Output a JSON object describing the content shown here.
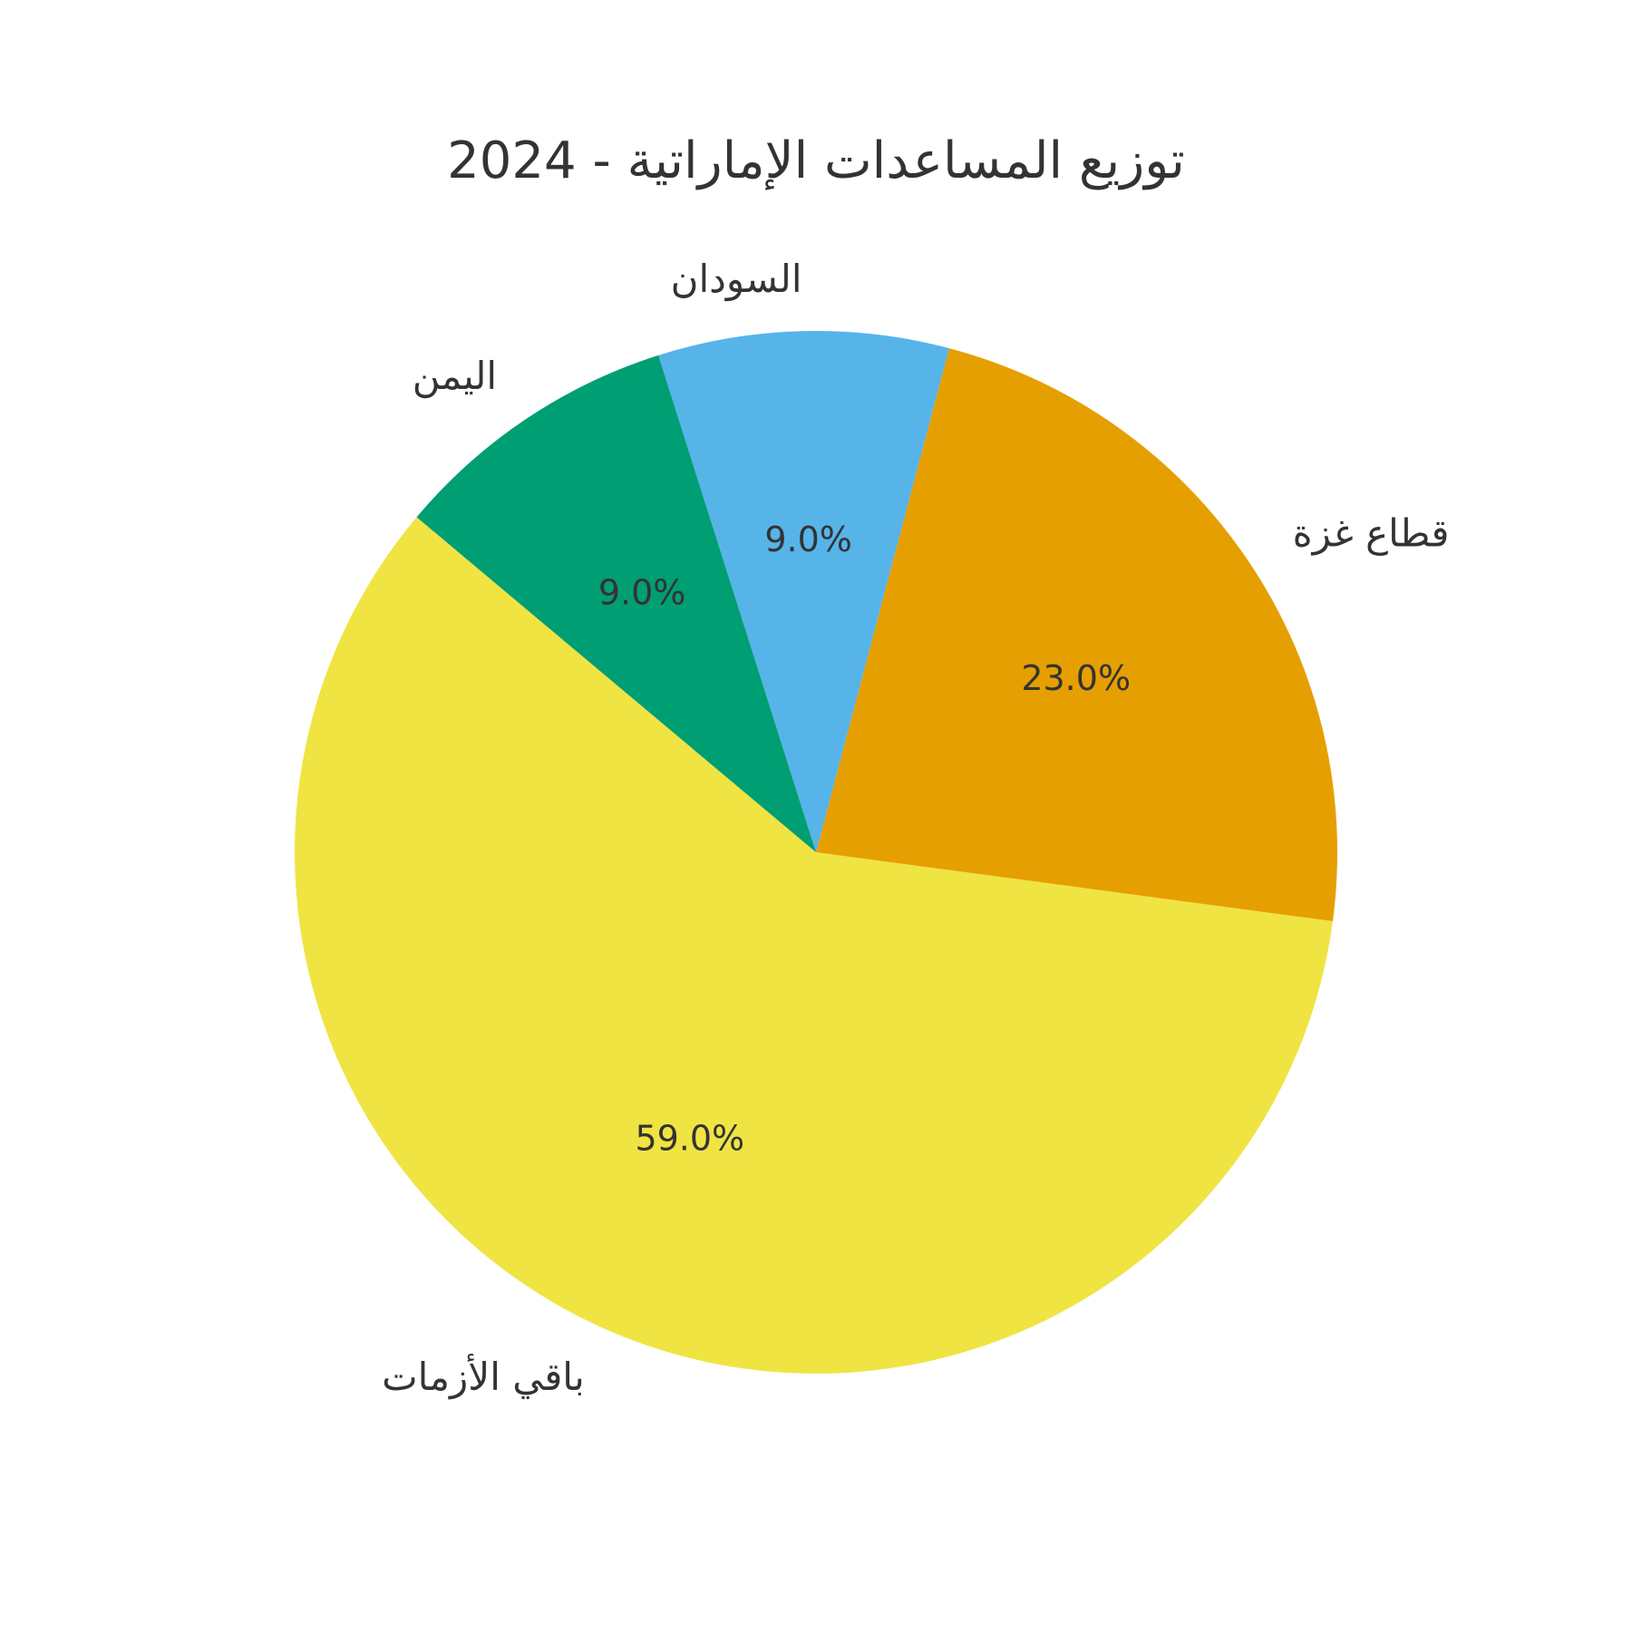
{
  "chart_data": {
    "type": "pie",
    "title": "توزيع المساعدات الإماراتية - 2024",
    "slices": [
      {
        "label": "باقي الأزمات",
        "value": 59.0,
        "pct_label": "59.0%",
        "color": "#F0E442"
      },
      {
        "label": "قطاع غزة",
        "value": 23.0,
        "pct_label": "23.0%",
        "color": "#E69F00"
      },
      {
        "label": "السودان",
        "value": 9.0,
        "pct_label": "9.0%",
        "color": "#56B4E9"
      },
      {
        "label": "اليمن",
        "value": 9.0,
        "pct_label": "9.0%",
        "color": "#009E73"
      }
    ]
  }
}
